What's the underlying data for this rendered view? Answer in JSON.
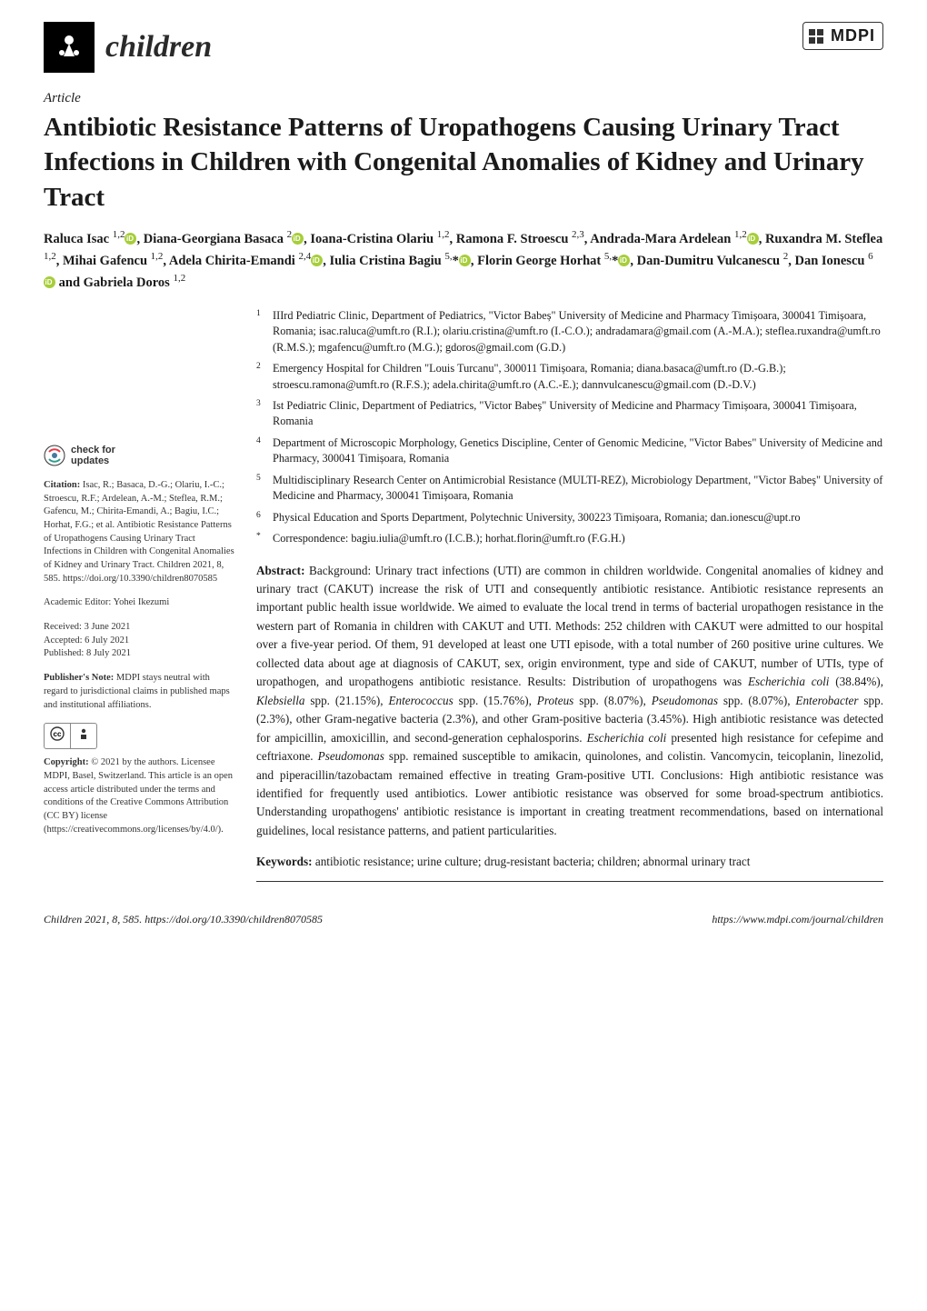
{
  "journal": {
    "name": "children",
    "publisher": "MDPI"
  },
  "article_type": "Article",
  "title": "Antibiotic Resistance Patterns of Uropathogens Causing Urinary Tract Infections in Children with Congenital Anomalies of Kidney and Urinary Tract",
  "authors_html": "Raluca Isac <sup>1,2</sup><span class='orcid' data-name='orcid-icon' data-interactable='false'></span>, Diana-Georgiana Basaca <sup>2</sup><span class='orcid' data-name='orcid-icon' data-interactable='false'></span>, Ioana-Cristina Olariu <sup>1,2</sup>, Ramona F. Stroescu <sup>2,3</sup>, Andrada-Mara Ardelean <sup>1,2</sup><span class='orcid' data-name='orcid-icon' data-interactable='false'></span>, Ruxandra M. Steflea <sup>1,2</sup>, Mihai Gafencu <sup>1,2</sup>, Adela Chirita-Emandi <sup>2,4</sup><span class='orcid' data-name='orcid-icon' data-interactable='false'></span>, Iulia Cristina Bagiu <sup>5,</sup>*<span class='orcid' data-name='orcid-icon' data-interactable='false'></span>, Florin George Horhat <sup>5,</sup>*<span class='orcid' data-name='orcid-icon' data-interactable='false'></span>, Dan-Dumitru Vulcanescu <sup>2</sup>, Dan Ionescu <sup>6</sup><span class='orcid' data-name='orcid-icon' data-interactable='false'></span> and Gabriela Doros <sup>1,2</sup>",
  "affiliations": [
    {
      "num": "1",
      "text": "IIIrd Pediatric Clinic, Department of Pediatrics, \"Victor Babeș\" University of Medicine and Pharmacy Timișoara, 300041 Timișoara, Romania; isac.raluca@umft.ro (R.I.); olariu.cristina@umft.ro (I.-C.O.); andradamara@gmail.com (A.-M.A.); steflea.ruxandra@umft.ro (R.M.S.); mgafencu@umft.ro (M.G.); gdoros@gmail.com (G.D.)"
    },
    {
      "num": "2",
      "text": "Emergency Hospital for Children \"Louis Turcanu\", 300011 Timișoara, Romania; diana.basaca@umft.ro (D.-G.B.); stroescu.ramona@umft.ro (R.F.S.); adela.chirita@umft.ro (A.C.-E.); dannvulcanescu@gmail.com (D.-D.V.)"
    },
    {
      "num": "3",
      "text": "Ist Pediatric Clinic, Department of Pediatrics, \"Victor Babeș\" University of Medicine and Pharmacy Timișoara, 300041 Timișoara, Romania"
    },
    {
      "num": "4",
      "text": "Department of Microscopic Morphology, Genetics Discipline, Center of Genomic Medicine, \"Victor Babes\" University of Medicine and Pharmacy, 300041 Timișoara, Romania"
    },
    {
      "num": "5",
      "text": "Multidisciplinary Research Center on Antimicrobial Resistance (MULTI-REZ), Microbiology Department, \"Victor Babeș\" University of Medicine and Pharmacy, 300041 Timișoara, Romania"
    },
    {
      "num": "6",
      "text": "Physical Education and Sports Department, Polytechnic University, 300223 Timișoara, Romania; dan.ionescu@upt.ro"
    },
    {
      "num": "*",
      "text": "Correspondence: bagiu.iulia@umft.ro (I.C.B.); horhat.florin@umft.ro (F.G.H.)"
    }
  ],
  "abstract": {
    "label": "Abstract:",
    "text": " Background: Urinary tract infections (UTI) are common in children worldwide. Congenital anomalies of kidney and urinary tract (CAKUT) increase the risk of UTI and consequently antibiotic resistance. Antibiotic resistance represents an important public health issue worldwide. We aimed to evaluate the local trend in terms of bacterial uropathogen resistance in the western part of Romania in children with CAKUT and UTI. Methods: 252 children with CAKUT were admitted to our hospital over a five-year period. Of them, 91 developed at least one UTI episode, with a total number of 260 positive urine cultures. We collected data about age at diagnosis of CAKUT, sex, origin environment, type and side of CAKUT, number of UTIs, type of uropathogen, and uropathogens antibiotic resistance. Results: Distribution of uropathogens was Escherichia coli (38.84%), Klebsiella spp. (21.15%), Enterococcus spp. (15.76%), Proteus spp. (8.07%), Pseudomonas spp. (8.07%), Enterobacter spp. (2.3%), other Gram-negative bacteria (2.3%), and other Gram-positive bacteria (3.45%). High antibiotic resistance was detected for ampicillin, amoxicillin, and second-generation cephalosporins. Escherichia coli presented high resistance for cefepime and ceftriaxone. Pseudomonas spp. remained susceptible to amikacin, quinolones, and colistin. Vancomycin, teicoplanin, linezolid, and piperacillin/tazobactam remained effective in treating Gram-positive UTI. Conclusions: High antibiotic resistance was identified for frequently used antibiotics. Lower antibiotic resistance was observed for some broad-spectrum antibiotics. Understanding uropathogens' antibiotic resistance is important in creating treatment recommendations, based on international guidelines, local resistance patterns, and patient particularities."
  },
  "keywords": {
    "label": "Keywords:",
    "text": " antibiotic resistance; urine culture; drug-resistant bacteria; children; abnormal urinary tract"
  },
  "sidebar": {
    "check_updates": "check for\nupdates",
    "citation_label": "Citation:",
    "citation": " Isac, R.; Basaca, D.-G.; Olariu, I.-C.; Stroescu, R.F.; Ardelean, A.-M.; Steflea, R.M.; Gafencu, M.; Chirita-Emandi, A.; Bagiu, I.C.; Horhat, F.G.; et al. Antibiotic Resistance Patterns of Uropathogens Causing Urinary Tract Infections in Children with Congenital Anomalies of Kidney and Urinary Tract. Children 2021, 8, 585. https://doi.org/10.3390/children8070585",
    "editor_label": "Academic Editor:",
    "editor": " Yohei Ikezumi",
    "received": "Received: 3 June 2021",
    "accepted": "Accepted: 6 July 2021",
    "published": "Published: 8 July 2021",
    "pubnote_label": "Publisher's Note:",
    "pubnote": " MDPI stays neutral with regard to jurisdictional claims in published maps and institutional affiliations.",
    "copyright_label": "Copyright:",
    "copyright": " © 2021 by the authors. Licensee MDPI, Basel, Switzerland. This article is an open access article distributed under the terms and conditions of the Creative Commons Attribution (CC BY) license (https://creativecommons.org/licenses/by/4.0/)."
  },
  "footer": {
    "left": "Children 2021, 8, 585. https://doi.org/10.3390/children8070585",
    "right": "https://www.mdpi.com/journal/children"
  },
  "colors": {
    "orcid": "#a6ce39",
    "text": "#1a1a1a",
    "background": "#ffffff"
  }
}
